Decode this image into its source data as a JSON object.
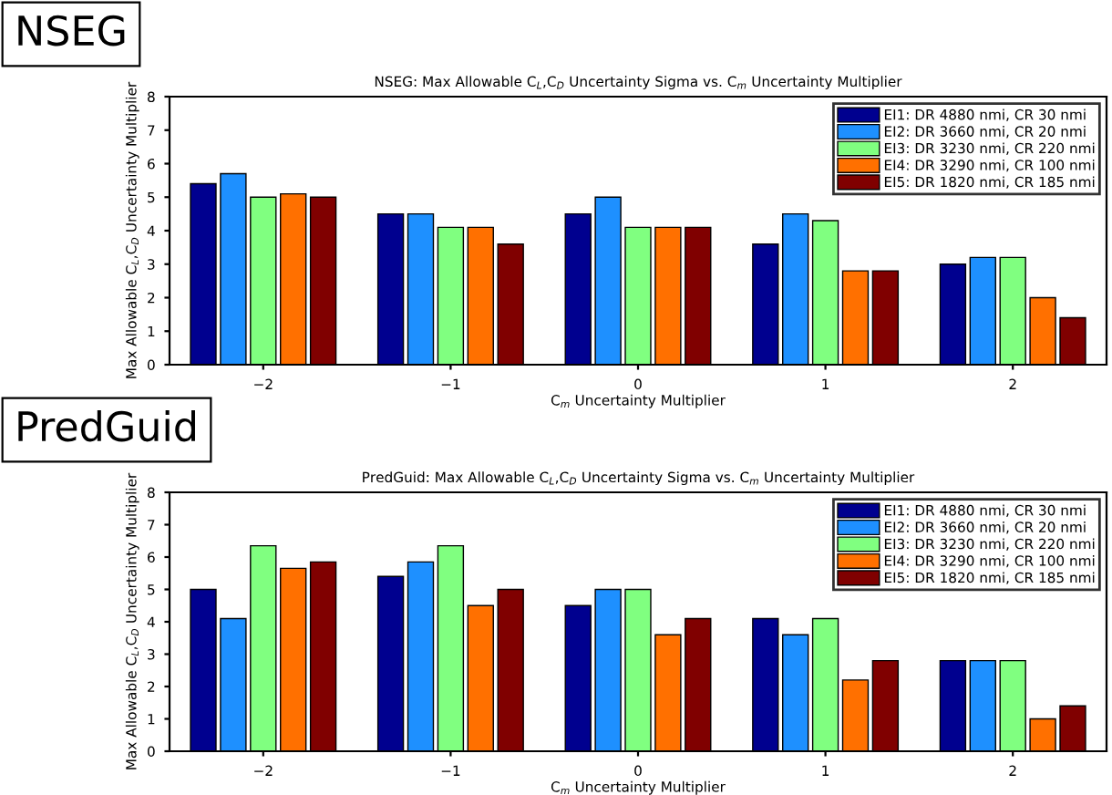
{
  "chart_data": [
    {
      "type": "bar",
      "title": "NSEG: Max Allowable C$_{L}$,C$_{D}$ Uncertainty Sigma vs. C$_{m}$ Uncertainty Multiplier",
      "xlabel": "C$_{m}$ Uncertainty Multiplier",
      "ylabel": "Max Allowable C$_{L}$,C$_{D}$ Uncertainty Multiplier",
      "annotations": [
        "NSEG"
      ],
      "categories": [
        "−2",
        "−1",
        "0",
        "1",
        "2"
      ],
      "ylim": [
        0,
        8
      ],
      "yticks": [
        0,
        1,
        2,
        3,
        4,
        5,
        6,
        7,
        8
      ],
      "grid": false,
      "legend": "top right",
      "series": [
        {
          "name": "EI1: DR 4880 nmi, CR 30 nmi",
          "color": "#00008f",
          "values": [
            5.4,
            4.5,
            4.5,
            3.6,
            3.0
          ]
        },
        {
          "name": "EI2: DR 3660 nmi, CR 20 nmi",
          "color": "#1e90ff",
          "values": [
            5.7,
            4.5,
            5.0,
            4.5,
            3.2
          ]
        },
        {
          "name": "EI3: DR 3230 nmi, CR 220 nmi",
          "color": "#80ff80",
          "values": [
            5.0,
            4.1,
            4.1,
            4.3,
            3.2
          ]
        },
        {
          "name": "EI4: DR 3290 nmi, CR 100 nmi",
          "color": "#ff7000",
          "values": [
            5.1,
            4.1,
            4.1,
            2.8,
            2.0
          ]
        },
        {
          "name": "EI5: DR 1820 nmi, CR 185 nmi",
          "color": "#800000",
          "values": [
            5.0,
            3.6,
            4.1,
            2.8,
            1.4
          ]
        }
      ]
    },
    {
      "type": "bar",
      "title": "PredGuid: Max Allowable C$_{L}$,C$_{D}$ Uncertainty Sigma vs. C$_{m}$ Uncertainty Multiplier",
      "xlabel": "C$_{m}$ Uncertainty Multiplier",
      "ylabel": "Max Allowable C$_{L}$,C$_{D}$ Uncertainty Multiplier",
      "annotations": [
        "PredGuid"
      ],
      "categories": [
        "−2",
        "−1",
        "0",
        "1",
        "2"
      ],
      "ylim": [
        0,
        8
      ],
      "yticks": [
        0,
        1,
        2,
        3,
        4,
        5,
        6,
        7,
        8
      ],
      "grid": false,
      "legend": "top right",
      "series": [
        {
          "name": "EI1: DR 4880 nmi, CR 30 nmi",
          "color": "#00008f",
          "values": [
            5.0,
            5.4,
            4.5,
            4.1,
            2.8
          ]
        },
        {
          "name": "EI2: DR 3660 nmi, CR 20 nmi",
          "color": "#1e90ff",
          "values": [
            4.1,
            5.85,
            5.0,
            3.6,
            2.8
          ]
        },
        {
          "name": "EI3: DR 3230 nmi, CR 220 nmi",
          "color": "#80ff80",
          "values": [
            6.35,
            6.35,
            5.0,
            4.1,
            2.8
          ]
        },
        {
          "name": "EI4: DR 3290 nmi, CR 100 nmi",
          "color": "#ff7000",
          "values": [
            5.65,
            4.5,
            3.6,
            2.2,
            1.0
          ]
        },
        {
          "name": "EI5: DR 1820 nmi, CR 185 nmi",
          "color": "#800000",
          "values": [
            5.85,
            5.0,
            4.1,
            2.8,
            1.4
          ]
        }
      ]
    }
  ]
}
